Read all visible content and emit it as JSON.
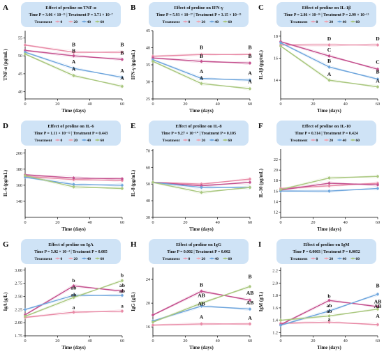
{
  "colors": {
    "t0": "#e8a0b4",
    "t20": "#f0a6b2",
    "t40": "#6fa6dd",
    "t60": "#a9c77e",
    "t0_main": "#e88aa6",
    "magenta": "#c4508e",
    "header_bg": "#cfe3f6"
  },
  "legend": {
    "prefix": "Treatment",
    "labels": [
      "0",
      "20",
      "40",
      "60"
    ]
  },
  "chart_data": [
    {
      "type": "line",
      "letter": "A",
      "title": "Effect of proline on TNF-α",
      "stat": "Time P = 3.06 × 10⁻¹¹ | Treatment P = 3.71 × 10⁻⁷",
      "xlabel": "Time (days)",
      "ylabel": "TNF-α (pg/mL)",
      "xlim": [
        0,
        60
      ],
      "xticks": [
        "0",
        "20",
        "40",
        "60"
      ],
      "x": [
        0,
        30,
        60
      ],
      "ylim": [
        38,
        57
      ],
      "yticks": [
        "40",
        "45",
        "50",
        "55"
      ],
      "ytick_values": [
        40,
        45,
        50,
        55
      ],
      "series": [
        {
          "name": "0",
          "values": [
            53.0,
            51.0,
            51.0
          ]
        },
        {
          "name": "20",
          "values": [
            51.5,
            50.0,
            49.0
          ]
        },
        {
          "name": "40",
          "values": [
            51.0,
            46.5,
            44.0
          ]
        },
        {
          "name": "60",
          "values": [
            50.5,
            44.5,
            41.5
          ]
        }
      ],
      "annotations": [
        {
          "text": "B",
          "x": 30,
          "y": 52.6
        },
        {
          "text": "B",
          "x": 30,
          "y": 50.9
        },
        {
          "text": "A",
          "x": 30,
          "y": 47.9
        },
        {
          "text": "A",
          "x": 30,
          "y": 45.9
        },
        {
          "text": "B",
          "x": 60,
          "y": 52.6
        },
        {
          "text": "B",
          "x": 60,
          "y": 50.3
        },
        {
          "text": "A",
          "x": 60,
          "y": 45.4
        },
        {
          "text": "A",
          "x": 60,
          "y": 43.3
        }
      ]
    },
    {
      "type": "line",
      "letter": "B",
      "title": "Effect of proline on IFN-γ",
      "stat": "Time P = 5.93 × 10⁻¹⁷ | Treatment P = 3.15 × 10⁻¹³",
      "xlabel": "Time (days)",
      "ylabel": "IFN-γ (pg/mL)",
      "xlim": [
        0,
        60
      ],
      "xticks": [
        "0",
        "20",
        "40",
        "60"
      ],
      "x": [
        0,
        30,
        60
      ],
      "ylim": [
        25,
        45
      ],
      "yticks": [
        "25",
        "30",
        "35",
        "40",
        "45"
      ],
      "ytick_values": [
        25,
        30,
        35,
        40,
        45
      ],
      "series": [
        {
          "name": "0",
          "values": [
            37.5,
            38.0,
            38.0
          ]
        },
        {
          "name": "20",
          "values": [
            37.0,
            36.0,
            35.5
          ]
        },
        {
          "name": "40",
          "values": [
            36.5,
            31.0,
            30.5
          ]
        },
        {
          "name": "60",
          "values": [
            36.0,
            29.5,
            28.0
          ]
        }
      ],
      "annotations": [
        {
          "text": "B",
          "x": 30,
          "y": 39.6
        },
        {
          "text": "B",
          "x": 30,
          "y": 37.0
        },
        {
          "text": "A",
          "x": 30,
          "y": 32.6
        },
        {
          "text": "A",
          "x": 30,
          "y": 30.6
        },
        {
          "text": "B",
          "x": 60,
          "y": 39.6
        },
        {
          "text": "B",
          "x": 60,
          "y": 37.0
        },
        {
          "text": "A",
          "x": 60,
          "y": 32.0
        },
        {
          "text": "A",
          "x": 60,
          "y": 29.6
        }
      ]
    },
    {
      "type": "line",
      "letter": "C",
      "title": "Effect of proline on IL-1β",
      "stat": "Time P = 2.86 × 10⁻¹⁶ | Treatment P = 2.99 × 10⁻¹³",
      "xlabel": "Time (days)",
      "ylabel": "IL-1β (pg/mL)",
      "xlim": [
        0,
        60
      ],
      "xticks": [
        "0",
        "20",
        "40",
        "60"
      ],
      "x": [
        0,
        30,
        60
      ],
      "ylim": [
        12.3,
        18.5
      ],
      "yticks": [
        "14",
        "16",
        "18"
      ],
      "ytick_values": [
        14,
        16,
        18
      ],
      "series": [
        {
          "name": "0",
          "values": [
            17.2,
            17.2,
            17.2
          ]
        },
        {
          "name": "20",
          "values": [
            17.5,
            16.2,
            15.0
          ]
        },
        {
          "name": "40",
          "values": [
            17.4,
            15.2,
            14.1
          ]
        },
        {
          "name": "60",
          "values": [
            17.1,
            14.0,
            13.4
          ]
        }
      ],
      "annotations": [
        {
          "text": "D",
          "x": 30,
          "y": 17.6
        },
        {
          "text": "C",
          "x": 30,
          "y": 16.6
        },
        {
          "text": "B",
          "x": 30,
          "y": 15.6
        },
        {
          "text": "A",
          "x": 30,
          "y": 14.4
        },
        {
          "text": "D",
          "x": 60,
          "y": 17.6
        },
        {
          "text": "C",
          "x": 60,
          "y": 15.5
        },
        {
          "text": "B",
          "x": 60,
          "y": 14.6
        },
        {
          "text": "A",
          "x": 60,
          "y": 13.8
        }
      ]
    },
    {
      "type": "line",
      "letter": "D",
      "title": "Effect of proline on IL-6",
      "stat": "Time P = 1.11 × 10⁻¹² | Treatment P = 0.443",
      "xlabel": "Time (days)",
      "ylabel": "IL-6 (pg/mL)",
      "xlim": [
        0,
        60
      ],
      "xticks": [
        "0",
        "20",
        "40",
        "60"
      ],
      "x": [
        0,
        30,
        60
      ],
      "ylim": [
        120,
        205
      ],
      "yticks": [
        "140",
        "160",
        "180",
        "200"
      ],
      "ytick_values": [
        140,
        160,
        180,
        200
      ],
      "series": [
        {
          "name": "0",
          "values": [
            171,
            167,
            166
          ]
        },
        {
          "name": "20",
          "values": [
            173,
            169,
            168
          ]
        },
        {
          "name": "40",
          "values": [
            170,
            161,
            160
          ]
        },
        {
          "name": "60",
          "values": [
            172,
            158,
            156
          ]
        }
      ],
      "annotations": []
    },
    {
      "type": "line",
      "letter": "E",
      "title": "Effect of proline on IL-8",
      "stat": "Time P = 9.27 × 10⁻¹⁰ | Treatment P = 0.105",
      "xlabel": "Time (days)",
      "ylabel": "IL-8 (pg/mL)",
      "xlim": [
        0,
        60
      ],
      "xticks": [
        "0",
        "20",
        "40",
        "60"
      ],
      "x": [
        0,
        30,
        60
      ],
      "ylim": [
        30,
        71
      ],
      "yticks": [
        "30",
        "40",
        "50",
        "60",
        "70"
      ],
      "ytick_values": [
        30,
        40,
        50,
        60,
        70
      ],
      "series": [
        {
          "name": "0",
          "values": [
            51,
            50,
            53
          ]
        },
        {
          "name": "20",
          "values": [
            51,
            49,
            51
          ]
        },
        {
          "name": "40",
          "values": [
            51,
            48,
            48
          ]
        },
        {
          "name": "60",
          "values": [
            51,
            45,
            48
          ]
        }
      ],
      "annotations": []
    },
    {
      "type": "line",
      "letter": "F",
      "title": "Effect of proline on IL-10",
      "stat": "Time P = 0.314 | Treatment P = 0.424",
      "xlabel": "Time (days)",
      "ylabel": "IL-10 (pg/mL)",
      "xlim": [
        0,
        60
      ],
      "xticks": [
        "0",
        "20",
        "40",
        "60"
      ],
      "x": [
        0,
        30,
        60
      ],
      "ylim": [
        11,
        24
      ],
      "yticks": [
        "12",
        "14",
        "16",
        "18",
        "20",
        "22"
      ],
      "ytick_values": [
        12,
        14,
        16,
        18,
        20,
        22
      ],
      "series": [
        {
          "name": "0",
          "values": [
            16.5,
            17.0,
            17.5
          ]
        },
        {
          "name": "20",
          "values": [
            16.2,
            17.5,
            17.2
          ]
        },
        {
          "name": "40",
          "values": [
            16.0,
            16.0,
            16.5
          ]
        },
        {
          "name": "60",
          "values": [
            16.3,
            18.5,
            18.8
          ]
        }
      ],
      "annotations": []
    },
    {
      "type": "line",
      "letter": "G",
      "title": "Effect of proline on IgA",
      "stat": "Time P = 5.02 × 10⁻⁴ | Treatment P = 0.085",
      "xlabel": "Time (days)",
      "ylabel": "IgA (g/L)",
      "xlim": [
        0,
        60
      ],
      "xticks": [
        "0",
        "20",
        "40",
        "60"
      ],
      "x": [
        0,
        30,
        60
      ],
      "ylim": [
        1.75,
        3.05
      ],
      "yticks": [
        "1.75",
        "2.00",
        "2.25",
        "2.50",
        "2.75",
        "3.00"
      ],
      "ytick_values": [
        1.75,
        2.0,
        2.25,
        2.5,
        2.75,
        3.0
      ],
      "series": [
        {
          "name": "0",
          "values": [
            2.1,
            2.2,
            2.22
          ]
        },
        {
          "name": "20",
          "values": [
            2.15,
            2.7,
            2.6
          ]
        },
        {
          "name": "40",
          "values": [
            2.25,
            2.52,
            2.52
          ]
        },
        {
          "name": "60",
          "values": [
            2.12,
            2.48,
            2.8
          ]
        }
      ],
      "annotations": [
        {
          "text": "b",
          "x": 30,
          "y": 2.77
        },
        {
          "text": "ab",
          "x": 30,
          "y": 2.63
        },
        {
          "text": "ab",
          "x": 30,
          "y": 2.5
        },
        {
          "text": "a",
          "x": 30,
          "y": 2.26
        },
        {
          "text": "b",
          "x": 60,
          "y": 2.87
        },
        {
          "text": "ab",
          "x": 60,
          "y": 2.68
        },
        {
          "text": "ab",
          "x": 60,
          "y": 2.57
        },
        {
          "text": "a",
          "x": 60,
          "y": 2.29
        }
      ]
    },
    {
      "type": "line",
      "letter": "H",
      "title": "Effect of proline on IgG",
      "stat": "Time P = 0.002 | Treatment P = 0.002",
      "xlabel": "Time (days)",
      "ylabel": "IgG (g/L)",
      "xlim": [
        0,
        60
      ],
      "xticks": [
        "0",
        "20",
        "40",
        "60"
      ],
      "x": [
        0,
        30,
        60
      ],
      "ylim": [
        14.5,
        26
      ],
      "yticks": [
        "16",
        "20",
        "24"
      ],
      "ytick_values": [
        16,
        20,
        24
      ],
      "series": [
        {
          "name": "0",
          "values": [
            16.3,
            16.5,
            16.5
          ]
        },
        {
          "name": "20",
          "values": [
            18.0,
            22.0,
            20.5
          ]
        },
        {
          "name": "40",
          "values": [
            17.0,
            19.5,
            19.0
          ]
        },
        {
          "name": "60",
          "values": [
            16.8,
            20.0,
            22.8
          ]
        }
      ],
      "annotations": [
        {
          "text": "B",
          "x": 30,
          "y": 22.8
        },
        {
          "text": "AB",
          "x": 30,
          "y": 21.0
        },
        {
          "text": "AB",
          "x": 30,
          "y": 19.6
        },
        {
          "text": "A",
          "x": 30,
          "y": 17.4
        },
        {
          "text": "B",
          "x": 60,
          "y": 24.2
        },
        {
          "text": "AB",
          "x": 60,
          "y": 21.4
        },
        {
          "text": "AB",
          "x": 60,
          "y": 19.8
        },
        {
          "text": "A",
          "x": 60,
          "y": 17.2
        }
      ]
    },
    {
      "type": "line",
      "letter": "I",
      "title": "Effect of proline on IgM",
      "stat": "Time P = 0.0003 | Treatment P = 0.0052",
      "xlabel": "Time (days)",
      "ylabel": "IgM (g/L)",
      "xlim": [
        0,
        60
      ],
      "xticks": [
        "0",
        "20",
        "40",
        "60"
      ],
      "x": [
        0,
        30,
        60
      ],
      "ylim": [
        1.15,
        2.25
      ],
      "yticks": [
        "1.2",
        "1.4",
        "1.6",
        "1.8",
        "2.0",
        "2.2"
      ],
      "ytick_values": [
        1.2,
        1.4,
        1.6,
        1.8,
        2.0,
        2.2
      ],
      "series": [
        {
          "name": "0",
          "values": [
            1.35,
            1.37,
            1.33
          ]
        },
        {
          "name": "20",
          "values": [
            1.33,
            1.72,
            1.62
          ]
        },
        {
          "name": "40",
          "values": [
            1.32,
            1.55,
            1.82
          ]
        },
        {
          "name": "60",
          "values": [
            1.4,
            1.47,
            1.58
          ]
        }
      ],
      "annotations": [
        {
          "text": "b",
          "x": 30,
          "y": 1.76
        },
        {
          "text": "ab",
          "x": 30,
          "y": 1.61
        },
        {
          "text": "ab",
          "x": 30,
          "y": 1.52
        },
        {
          "text": "a",
          "x": 30,
          "y": 1.39
        },
        {
          "text": "B",
          "x": 60,
          "y": 1.93
        },
        {
          "text": "AB",
          "x": 60,
          "y": 1.67
        },
        {
          "text": "AB",
          "x": 60,
          "y": 1.6
        },
        {
          "text": "A",
          "x": 60,
          "y": 1.44
        }
      ]
    }
  ]
}
